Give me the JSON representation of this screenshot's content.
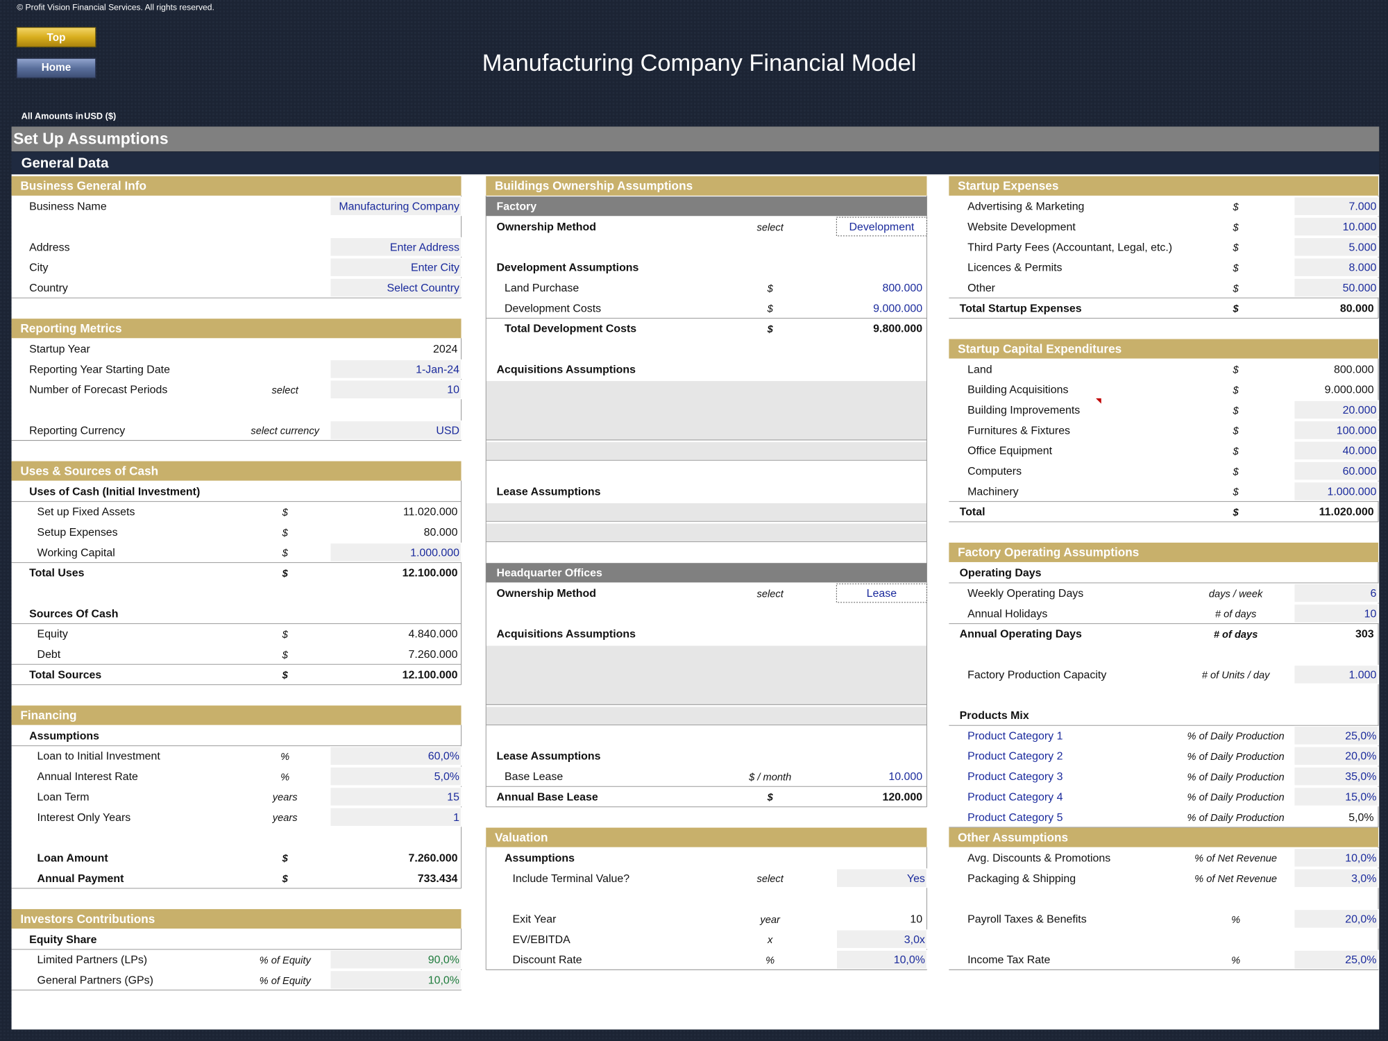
{
  "header": {
    "copyright": "© Profit Vision Financial Services. All rights reserved.",
    "buttons": [
      "Top",
      "Home"
    ],
    "title": "Manufacturing Company Financial Model",
    "amounts_label": "All Amounts in",
    "currency": "USD ($)"
  },
  "sheet": {
    "title": "Set Up Assumptions",
    "subtitle": "General Data"
  },
  "columns": [
    [
      {
        "title": "Business General Info",
        "rows": [
          {
            "label": "Business Name",
            "value": "Manufacturing Company"
          },
          {
            "label": "Address",
            "value": "Enter Address"
          },
          {
            "label": "City",
            "value": "Enter City"
          },
          {
            "label": "Country",
            "value": "Select Country"
          }
        ]
      },
      {
        "title": "Reporting Metrics",
        "rows": [
          {
            "label": "Startup Year",
            "value": "2024"
          },
          {
            "label": "Reporting Year Starting Date",
            "value": "1-Jan-24"
          },
          {
            "label": "Number of Forecast Periods",
            "unit": "select",
            "value": "10"
          },
          {
            "label": "Reporting Currency",
            "unit": "select currency",
            "value": "USD"
          }
        ]
      },
      {
        "title": "Uses & Sources of Cash",
        "rows": [
          {
            "label": "Uses of Cash (Initial Investment)"
          },
          {
            "label": "Set up Fixed Assets",
            "unit": "$",
            "value": "11.020.000"
          },
          {
            "label": "Setup Expenses",
            "unit": "$",
            "value": "80.000"
          },
          {
            "label": "Working Capital",
            "unit": "$",
            "value": "1.000.000"
          },
          {
            "label": "Total Uses",
            "unit": "$",
            "value": "12.100.000"
          },
          {
            "label": "Sources Of Cash"
          },
          {
            "label": "Equity",
            "unit": "$",
            "value": "4.840.000"
          },
          {
            "label": "Debt",
            "unit": "$",
            "value": "7.260.000"
          },
          {
            "label": "Total Sources",
            "unit": "$",
            "value": "12.100.000"
          }
        ]
      },
      {
        "title": "Financing",
        "rows": [
          {
            "label": "Assumptions"
          },
          {
            "label": "Loan to Initial Investment",
            "unit": "%",
            "value": "60,0%"
          },
          {
            "label": "Annual Interest Rate",
            "unit": "%",
            "value": "5,0%"
          },
          {
            "label": "Loan Term",
            "unit": "years",
            "value": "15"
          },
          {
            "label": "Interest Only Years",
            "unit": "years",
            "value": "1"
          },
          {
            "label": "Loan Amount",
            "unit": "$",
            "value": "7.260.000"
          },
          {
            "label": "Annual Payment",
            "unit": "$",
            "value": "733.434"
          }
        ]
      },
      {
        "title": "Investors Contributions",
        "rows": [
          {
            "label": "Equity Share"
          },
          {
            "label": "Limited Partners (LPs)",
            "unit": "% of Equity",
            "value": "90,0%"
          },
          {
            "label": "General Partners (GPs)",
            "unit": "% of Equity",
            "value": "10,0%"
          }
        ]
      }
    ],
    [
      {
        "title": "Buildings Ownership Assumptions",
        "rows": [
          {
            "label": "Factory"
          },
          {
            "label": "Ownership Method",
            "unit": "select",
            "value": "Development"
          },
          {
            "label": "Development Assumptions"
          },
          {
            "label": "Land Purchase",
            "unit": "$",
            "value": "800.000"
          },
          {
            "label": "Development Costs",
            "unit": "$",
            "value": "9.000.000"
          },
          {
            "label": "Total Development Costs",
            "unit": "$",
            "value": "9.800.000"
          },
          {
            "label": "Acquisitions Assumptions"
          },
          {
            "label": "Lease Assumptions"
          },
          {
            "label": "Headquarter Offices"
          },
          {
            "label": "Ownership Method",
            "unit": "select",
            "value": "Lease"
          },
          {
            "label": "Acquisitions Assumptions"
          },
          {
            "label": "Lease Assumptions"
          },
          {
            "label": "Base Lease",
            "unit": "$ / month",
            "value": "10.000"
          },
          {
            "label": "Annual Base Lease",
            "unit": "$",
            "value": "120.000"
          }
        ]
      },
      {
        "title": "Valuation",
        "rows": [
          {
            "label": "Assumptions"
          },
          {
            "label": "Include Terminal Value?",
            "unit": "select",
            "value": "Yes"
          },
          {
            "label": "Exit Year",
            "unit": "year",
            "value": "10"
          },
          {
            "label": "EV/EBITDA",
            "unit": "x",
            "value": "3,0x"
          },
          {
            "label": "Discount Rate",
            "unit": "%",
            "value": "10,0%"
          }
        ]
      }
    ],
    [
      {
        "title": "Startup Expenses",
        "rows": [
          {
            "label": "Advertising & Marketing",
            "unit": "$",
            "value": "7.000"
          },
          {
            "label": "Website Development",
            "unit": "$",
            "value": "10.000"
          },
          {
            "label": "Third Party Fees (Accountant, Legal, etc.)",
            "unit": "$",
            "value": "5.000"
          },
          {
            "label": "Licences & Permits",
            "unit": "$",
            "value": "8.000"
          },
          {
            "label": "Other",
            "unit": "$",
            "value": "50.000"
          },
          {
            "label": "Total Startup Expenses",
            "unit": "$",
            "value": "80.000"
          }
        ]
      },
      {
        "title": "Startup Capital Expenditures",
        "rows": [
          {
            "label": "Land",
            "unit": "$",
            "value": "800.000"
          },
          {
            "label": "Building Acquisitions",
            "unit": "$",
            "value": "9.000.000"
          },
          {
            "label": "Building Improvements",
            "unit": "$",
            "value": "20.000"
          },
          {
            "label": "Furnitures & Fixtures",
            "unit": "$",
            "value": "100.000"
          },
          {
            "label": "Office Equipment",
            "unit": "$",
            "value": "40.000"
          },
          {
            "label": "Computers",
            "unit": "$",
            "value": "60.000"
          },
          {
            "label": "Machinery",
            "unit": "$",
            "value": "1.000.000"
          },
          {
            "label": "Total",
            "unit": "$",
            "value": "11.020.000"
          }
        ]
      },
      {
        "title": "Factory Operating Assumptions",
        "rows": [
          {
            "label": "Operating Days"
          },
          {
            "label": "Weekly Operating Days",
            "unit": "days / week",
            "value": "6"
          },
          {
            "label": "Annual Holidays",
            "unit": "# of days",
            "value": "10"
          },
          {
            "label": "Annual Operating Days",
            "unit": "# of days",
            "value": "303"
          },
          {
            "label": "Factory Production Capacity",
            "unit": "# of Units / day",
            "value": "1.000"
          },
          {
            "label": "Products Mix"
          },
          {
            "label": "Product Category 1",
            "unit": "% of Daily Production",
            "value": "25,0%"
          },
          {
            "label": "Product Category 2",
            "unit": "% of Daily Production",
            "value": "20,0%"
          },
          {
            "label": "Product Category 3",
            "unit": "% of Daily Production",
            "value": "35,0%"
          },
          {
            "label": "Product Category 4",
            "unit": "% of Daily Production",
            "value": "15,0%"
          },
          {
            "label": "Product Category 5",
            "unit": "% of Daily Production",
            "value": "5,0%"
          }
        ]
      },
      {
        "title": "Other Assumptions",
        "rows": [
          {
            "label": "Avg. Discounts & Promotions",
            "unit": "% of Net Revenue",
            "value": "10,0%"
          },
          {
            "label": "Packaging & Shipping",
            "unit": "% of Net Revenue",
            "value": "3,0%"
          },
          {
            "label": "Payroll Taxes & Benefits",
            "unit": "%",
            "value": "20,0%"
          },
          {
            "label": "Income Tax Rate",
            "unit": "%",
            "value": "25,0%"
          }
        ]
      }
    ]
  ]
}
